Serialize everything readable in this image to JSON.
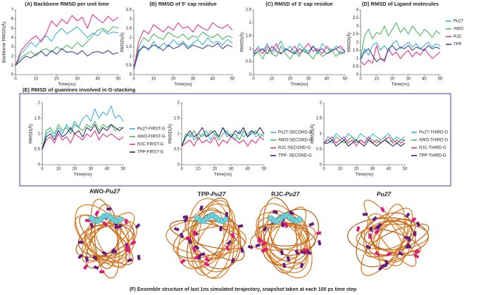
{
  "chart_data": [
    {
      "type": "line",
      "title": "(A) Backbone RMSD per unit time",
      "xlabel": "Time(ns)",
      "ylabel": "Backbone RMSD(Å)",
      "x": [
        0,
        2.5,
        5,
        7.5,
        10,
        12.5,
        15,
        17.5,
        20,
        22.5,
        25,
        27.5,
        30,
        32.5,
        35,
        37.5,
        40,
        42.5,
        45,
        47.5,
        50
      ],
      "xlim": [
        0,
        50
      ],
      "xticks": [
        0,
        10,
        20,
        30,
        40,
        50
      ],
      "ylim": [
        0,
        7
      ],
      "yticks": [
        0,
        1,
        2,
        3,
        4,
        5,
        6,
        7
      ],
      "series": [
        {
          "color": "#29abe2",
          "values": [
            1.0,
            2.2,
            2.8,
            3.5,
            3.0,
            3.8,
            4.2,
            3.6,
            4.5,
            5.0,
            4.4,
            4.8,
            5.2,
            4.6,
            4.0,
            4.5,
            4.2,
            4.8,
            4.4,
            4.6,
            4.5
          ]
        },
        {
          "color": "#39b54a",
          "values": [
            1.0,
            1.8,
            2.2,
            2.5,
            2.0,
            2.6,
            2.8,
            2.4,
            3.0,
            2.7,
            3.2,
            2.8,
            3.5,
            3.0,
            3.6,
            4.2,
            4.8,
            5.0,
            4.6,
            5.2,
            5.0
          ]
        },
        {
          "color": "#ed1e79",
          "values": [
            1.0,
            2.5,
            3.2,
            3.8,
            4.2,
            3.5,
            4.5,
            5.8,
            5.2,
            6.0,
            5.5,
            6.4,
            5.8,
            6.2,
            5.0,
            6.5,
            6.0,
            5.6,
            6.3,
            5.8,
            6.2
          ]
        },
        {
          "color": "#2e3192",
          "values": [
            1.0,
            1.5,
            2.0,
            1.8,
            2.2,
            2.5,
            2.0,
            2.6,
            2.2,
            2.8,
            2.4,
            2.5,
            2.2,
            2.6,
            2.0,
            2.4,
            2.5,
            2.3,
            2.6,
            2.2,
            2.4
          ]
        }
      ]
    },
    {
      "type": "line",
      "title": "(B) RMSD of 5' cap residue",
      "xlabel": "Time(ns)",
      "ylabel": "RMSD(Å)",
      "x": [
        0,
        2.5,
        5,
        7.5,
        10,
        12.5,
        15,
        17.5,
        20,
        22.5,
        25,
        27.5,
        30,
        32.5,
        35,
        37.5,
        40,
        42.5,
        45,
        47.5,
        50
      ],
      "xlim": [
        0,
        50
      ],
      "xticks": [
        0,
        10,
        20,
        30,
        40,
        50
      ],
      "ylim": [
        0,
        3.5
      ],
      "yticks": [
        0,
        0.5,
        1,
        1.5,
        2,
        2.5,
        3,
        3.5
      ],
      "series": [
        {
          "color": "#29abe2",
          "values": [
            0.3,
            1.2,
            1.6,
            1.3,
            1.8,
            1.4,
            1.7,
            1.5,
            1.9,
            1.6,
            1.8,
            1.5,
            1.7,
            1.9,
            1.6,
            2.0,
            1.7,
            1.8,
            1.6,
            1.9,
            1.7
          ]
        },
        {
          "color": "#39b54a",
          "values": [
            0.3,
            1.5,
            2.0,
            1.8,
            2.2,
            2.0,
            1.9,
            2.3,
            2.1,
            2.0,
            2.2,
            1.9,
            2.1,
            2.0,
            2.3,
            2.1,
            2.0,
            2.2,
            1.9,
            2.1,
            2.0
          ]
        },
        {
          "color": "#ed1e79",
          "values": [
            0.3,
            1.8,
            2.4,
            2.2,
            2.7,
            2.5,
            2.3,
            2.6,
            2.4,
            2.8,
            2.5,
            2.6,
            2.3,
            2.7,
            2.5,
            2.4,
            2.8,
            2.6,
            2.5,
            2.7,
            2.4
          ]
        },
        {
          "color": "#2e3192",
          "values": [
            0.3,
            1.3,
            1.5,
            1.4,
            1.6,
            1.5,
            1.3,
            1.6,
            1.4,
            1.5,
            1.7,
            1.4,
            1.6,
            1.5,
            1.4,
            1.6,
            1.5,
            1.7,
            1.4,
            1.6,
            1.5
          ]
        }
      ]
    },
    {
      "type": "line",
      "title": "(C) RMSD of 3' cap residue",
      "xlabel": "Time(ns)",
      "ylabel": "RMSD(Å)",
      "x": [
        0,
        2.5,
        5,
        7.5,
        10,
        12.5,
        15,
        17.5,
        20,
        22.5,
        25,
        27.5,
        30,
        32.5,
        35,
        37.5,
        40,
        42.5,
        45,
        47.5,
        50
      ],
      "xlim": [
        0,
        50
      ],
      "xticks": [
        0,
        10,
        20,
        30,
        40,
        50
      ],
      "ylim": [
        0,
        2.5
      ],
      "yticks": [
        0,
        0.5,
        1,
        1.5,
        2,
        2.5
      ],
      "series": [
        {
          "color": "#29abe2",
          "values": [
            0.8,
            1.1,
            0.9,
            1.2,
            0.8,
            1.0,
            1.3,
            0.9,
            1.1,
            0.8,
            1.2,
            1.0,
            0.9,
            1.1,
            0.8,
            1.2,
            1.0,
            0.9,
            1.1,
            1.0,
            0.9
          ]
        },
        {
          "color": "#ed1e79",
          "values": [
            0.9,
            1.0,
            0.8,
            1.1,
            0.9,
            1.2,
            0.8,
            1.0,
            0.9,
            1.1,
            0.8,
            1.0,
            1.2,
            0.9,
            1.0,
            0.8,
            1.1,
            0.9,
            1.0,
            1.1,
            0.9
          ]
        },
        {
          "color": "#2e3192",
          "values": [
            0.8,
            0.9,
            1.0,
            0.8,
            1.1,
            0.9,
            0.8,
            1.0,
            0.9,
            0.8,
            1.0,
            0.9,
            0.8,
            1.1,
            0.9,
            1.0,
            0.8,
            0.9,
            1.0,
            0.8,
            0.9
          ]
        },
        {
          "color": "#39b54a",
          "values": [
            0.7,
            0.9,
            0.6,
            1.0,
            0.8,
            0.7,
            1.1,
            0.8,
            0.6,
            0.9,
            0.7,
            1.0,
            0.8,
            0.6,
            0.9,
            0.7,
            0.8,
            1.0,
            0.7,
            0.9,
            0.8
          ]
        }
      ]
    },
    {
      "type": "line",
      "title": "(D) RMSD of Ligand molecules",
      "xlabel": "Time(ns)",
      "ylabel": "RMSD(Å)",
      "x": [
        0,
        2.5,
        5,
        7.5,
        10,
        12.5,
        15,
        17.5,
        20,
        22.5,
        25,
        27.5,
        30,
        32.5,
        35,
        37.5,
        40,
        42.5,
        45,
        47.5,
        50
      ],
      "xlim": [
        0,
        50
      ],
      "xticks": [
        0,
        10,
        20,
        30,
        40,
        50
      ],
      "ylim": [
        0,
        4
      ],
      "yticks": [
        0,
        0.5,
        1,
        1.5,
        2,
        2.5,
        3,
        3.5,
        4
      ],
      "series": [
        {
          "name": "Pu27",
          "color": "#29abe2",
          "values": [
            0.8,
            1.6,
            1.2,
            1.8,
            2.0,
            1.5,
            1.8,
            1.4,
            1.9,
            2.1,
            1.6,
            1.8,
            2.0,
            1.7,
            1.9,
            1.6,
            1.8,
            2.0,
            1.7,
            1.9,
            1.8
          ]
        },
        {
          "name": "AWO",
          "color": "#39b54a",
          "values": [
            1.0,
            2.4,
            2.8,
            2.2,
            2.6,
            2.5,
            3.0,
            2.4,
            2.8,
            3.2,
            2.6,
            2.9,
            2.5,
            3.0,
            2.7,
            2.4,
            2.8,
            2.6,
            2.3,
            2.7,
            2.5
          ]
        },
        {
          "name": "RJC",
          "color": "#ed1e79",
          "values": [
            0.8,
            0.6,
            0.9,
            0.7,
            1.8,
            1.0,
            0.8,
            1.6,
            1.2,
            1.4,
            1.0,
            1.3,
            1.5,
            1.1,
            1.4,
            1.2,
            1.6,
            1.3,
            1.0,
            1.2,
            1.4
          ]
        },
        {
          "name": "TPP",
          "color": "#2e3192",
          "values": [
            1.0,
            1.4,
            1.6,
            1.2,
            0.8,
            1.0,
            0.9,
            1.6,
            1.8,
            1.5,
            1.7,
            1.6,
            1.8,
            1.5,
            1.7,
            1.6,
            1.5,
            1.8,
            1.6,
            1.7,
            1.6
          ]
        }
      ],
      "legend": "right"
    },
    {
      "type": "line",
      "xlabel": "Time(ns)",
      "ylabel": "RMSD(Å)",
      "x": [
        0,
        2.5,
        5,
        7.5,
        10,
        12.5,
        15,
        17.5,
        20,
        22.5,
        25,
        27.5,
        30,
        32.5,
        35,
        37.5,
        40,
        42.5,
        45,
        47.5,
        50
      ],
      "xlim": [
        0,
        50
      ],
      "xticks": [
        0,
        10,
        20,
        30,
        40,
        50
      ],
      "ylim": [
        0,
        2
      ],
      "yticks": [
        0,
        0.5,
        1,
        1.5,
        2
      ],
      "series": [
        {
          "name": "Pu27-FIRST-G",
          "color": "#29abe2",
          "values": [
            0.5,
            1.0,
            1.1,
            0.9,
            1.2,
            1.0,
            1.3,
            1.1,
            1.4,
            1.2,
            1.5,
            1.6,
            1.4,
            1.8,
            1.5,
            1.7,
            1.6,
            1.9,
            1.5,
            1.6,
            1.4
          ]
        },
        {
          "name": "AWO-FIRST-G",
          "color": "#39b54a",
          "values": [
            0.5,
            1.1,
            1.2,
            1.0,
            1.3,
            1.1,
            1.2,
            1.0,
            1.3,
            1.2,
            1.1,
            1.3,
            1.2,
            1.4,
            1.1,
            1.3,
            1.2,
            1.3,
            1.1,
            1.2,
            1.2
          ]
        },
        {
          "name": "RJC-FIRST-G",
          "color": "#ed1e79",
          "values": [
            0.5,
            0.8,
            0.9,
            0.7,
            1.0,
            0.8,
            0.9,
            0.7,
            1.0,
            0.9,
            0.8,
            1.0,
            0.9,
            1.1,
            0.8,
            1.0,
            0.9,
            1.0,
            0.9,
            0.8,
            0.9
          ]
        },
        {
          "name": "TPP-FIRST-G",
          "color": "#1b1464",
          "values": [
            0.5,
            0.9,
            1.0,
            0.8,
            1.1,
            0.9,
            1.0,
            1.2,
            1.0,
            1.1,
            0.9,
            1.2,
            1.1,
            1.3,
            1.0,
            1.2,
            1.1,
            1.3,
            1.2,
            1.1,
            1.2
          ]
        }
      ],
      "legend": "right"
    },
    {
      "type": "line",
      "xlabel": "Time(ns)",
      "ylabel": "RMSD(Å)",
      "x": [
        0,
        2.5,
        5,
        7.5,
        10,
        12.5,
        15,
        17.5,
        20,
        22.5,
        25,
        27.5,
        30,
        32.5,
        35,
        37.5,
        40,
        42.5,
        45,
        47.5,
        50
      ],
      "xlim": [
        0,
        50
      ],
      "xticks": [
        0,
        10,
        20,
        30,
        40,
        50
      ],
      "ylim": [
        0,
        2
      ],
      "yticks": [
        0,
        0.5,
        1,
        1.5,
        2
      ],
      "series": [
        {
          "name": "Pu27-SECOND-G",
          "color": "#29abe2",
          "values": [
            0.6,
            0.9,
            1.0,
            0.8,
            1.0,
            0.9,
            1.1,
            0.8,
            1.0,
            0.9,
            1.2,
            0.9,
            1.0,
            0.8,
            1.1,
            0.9,
            1.0,
            1.1,
            0.9,
            1.0,
            0.9
          ]
        },
        {
          "name": "AWO-SECOND-G",
          "color": "#39b54a",
          "values": [
            0.6,
            1.0,
            0.9,
            1.1,
            0.8,
            1.0,
            0.9,
            1.1,
            1.0,
            0.8,
            1.0,
            1.1,
            0.9,
            1.0,
            0.8,
            1.1,
            0.9,
            1.0,
            1.1,
            0.9,
            1.0
          ]
        },
        {
          "name": "RJC-SECOND-G",
          "color": "#ed1e79",
          "values": [
            0.6,
            0.7,
            0.8,
            0.6,
            0.9,
            0.7,
            0.8,
            0.7,
            0.9,
            0.6,
            0.8,
            0.7,
            0.9,
            0.8,
            0.7,
            0.8,
            0.6,
            0.8,
            0.7,
            0.9,
            0.8
          ]
        },
        {
          "name": "TPP- SECOND-G",
          "color": "#1b1464",
          "values": [
            0.6,
            0.9,
            1.1,
            0.9,
            1.0,
            1.2,
            0.9,
            1.0,
            1.1,
            0.9,
            1.2,
            1.0,
            0.9,
            1.1,
            1.0,
            1.2,
            0.9,
            1.1,
            1.0,
            1.2,
            1.0
          ]
        }
      ],
      "legend": "right"
    },
    {
      "type": "line",
      "xlabel": "Time(ns)",
      "ylabel": "RMSD(Å)",
      "x": [
        0,
        2.5,
        5,
        7.5,
        10,
        12.5,
        15,
        17.5,
        20,
        22.5,
        25,
        27.5,
        30,
        32.5,
        35,
        37.5,
        40,
        42.5,
        45,
        47.5,
        50
      ],
      "xlim": [
        0,
        50
      ],
      "xticks": [
        0,
        10,
        20,
        30,
        40,
        50
      ],
      "ylim": [
        0,
        2
      ],
      "yticks": [
        0,
        0.5,
        1,
        1.5,
        2
      ],
      "series": [
        {
          "name": "Pu27-THIRD-G",
          "color": "#29abe2",
          "values": [
            0.7,
            0.9,
            0.8,
            1.0,
            0.9,
            0.8,
            1.0,
            0.9,
            0.8,
            1.0,
            0.9,
            0.8,
            1.0,
            0.9,
            0.8,
            0.9,
            1.0,
            0.8,
            0.9,
            0.8,
            0.9
          ]
        },
        {
          "name": "AWO-THIRD-G",
          "color": "#39b54a",
          "values": [
            0.7,
            0.8,
            0.7,
            0.9,
            0.8,
            0.7,
            0.8,
            0.9,
            0.7,
            0.8,
            0.7,
            0.9,
            0.8,
            0.7,
            0.8,
            0.9,
            0.7,
            0.8,
            0.7,
            0.8,
            0.8
          ]
        },
        {
          "name": "RJC-THIRD-G",
          "color": "#ed1e79",
          "values": [
            0.7,
            0.8,
            0.9,
            0.7,
            0.8,
            0.9,
            0.7,
            0.8,
            0.6,
            0.8,
            0.7,
            0.9,
            0.7,
            0.8,
            0.7,
            0.8,
            0.9,
            0.7,
            0.8,
            0.7,
            0.8
          ]
        },
        {
          "name": "TPP-THIRD-G",
          "color": "#1b1464",
          "values": [
            0.7,
            0.7,
            0.8,
            0.6,
            0.7,
            0.8,
            0.6,
            0.7,
            0.8,
            0.7,
            0.6,
            0.8,
            0.7,
            0.6,
            0.7,
            0.8,
            0.7,
            0.6,
            0.7,
            0.6,
            0.7
          ]
        }
      ],
      "legend": "right"
    }
  ],
  "panel_e_title": "(E) RMSD of guanines involved in G-stacking",
  "structures": [
    {
      "ligand": "AWO-",
      "dna": "Pu27"
    },
    {
      "ligand": "TPP-",
      "dna": "Pu27"
    },
    {
      "ligand": "RJC-",
      "dna": "Pu27"
    },
    {
      "dna": "Pu27"
    }
  ],
  "caption": "(F) Ensemble structure of last 1ns simulated terajectory, snapshot taken at each 100 ps time step"
}
